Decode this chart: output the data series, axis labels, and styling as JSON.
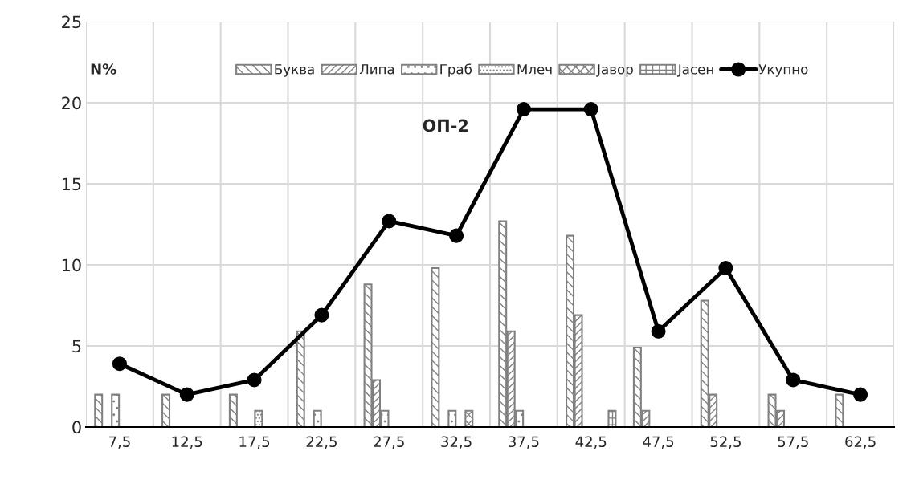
{
  "chart_data": {
    "type": "bar",
    "ylabel": "N%",
    "annotations": [
      "ОП-2"
    ],
    "categories": [
      "7,5",
      "12,5",
      "17,5",
      "22,5",
      "27,5",
      "32,5",
      "37,5",
      "42,5",
      "47,5",
      "52,5",
      "57,5",
      "62,5"
    ],
    "series": [
      {
        "name": "Буква",
        "color": "#808080",
        "values": [
          2,
          2,
          2,
          5.9,
          8.8,
          9.8,
          12.7,
          11.8,
          4.9,
          7.8,
          2,
          2
        ]
      },
      {
        "name": "Липа",
        "color": "#808080",
        "values": [
          null,
          null,
          null,
          null,
          2.9,
          null,
          5.9,
          6.9,
          1,
          2,
          1,
          null
        ]
      },
      {
        "name": "Граб",
        "color": "#808080",
        "values": [
          2,
          null,
          null,
          1,
          1,
          1,
          1,
          null,
          null,
          null,
          null,
          null
        ]
      },
      {
        "name": "Млеч",
        "color": "#808080",
        "values": [
          null,
          null,
          1,
          null,
          null,
          null,
          null,
          null,
          null,
          null,
          null,
          null
        ]
      },
      {
        "name": "Јавор",
        "color": "#808080",
        "values": [
          null,
          null,
          null,
          null,
          null,
          1,
          null,
          null,
          null,
          null,
          null,
          null
        ]
      },
      {
        "name": "Јасен",
        "color": "#808080",
        "values": [
          null,
          null,
          null,
          null,
          null,
          null,
          null,
          1,
          null,
          null,
          null,
          null
        ]
      },
      {
        "name": "Укупно",
        "type": "line",
        "color": "#000000",
        "marker": "circle",
        "values": [
          3.9,
          2,
          2.9,
          6.9,
          12.7,
          11.8,
          19.6,
          19.6,
          5.9,
          9.8,
          2.9,
          2
        ]
      }
    ],
    "ylim": [
      0,
      25
    ],
    "yticks": [
      0,
      5,
      10,
      15,
      20,
      25
    ],
    "grid": true,
    "legend": "top"
  }
}
